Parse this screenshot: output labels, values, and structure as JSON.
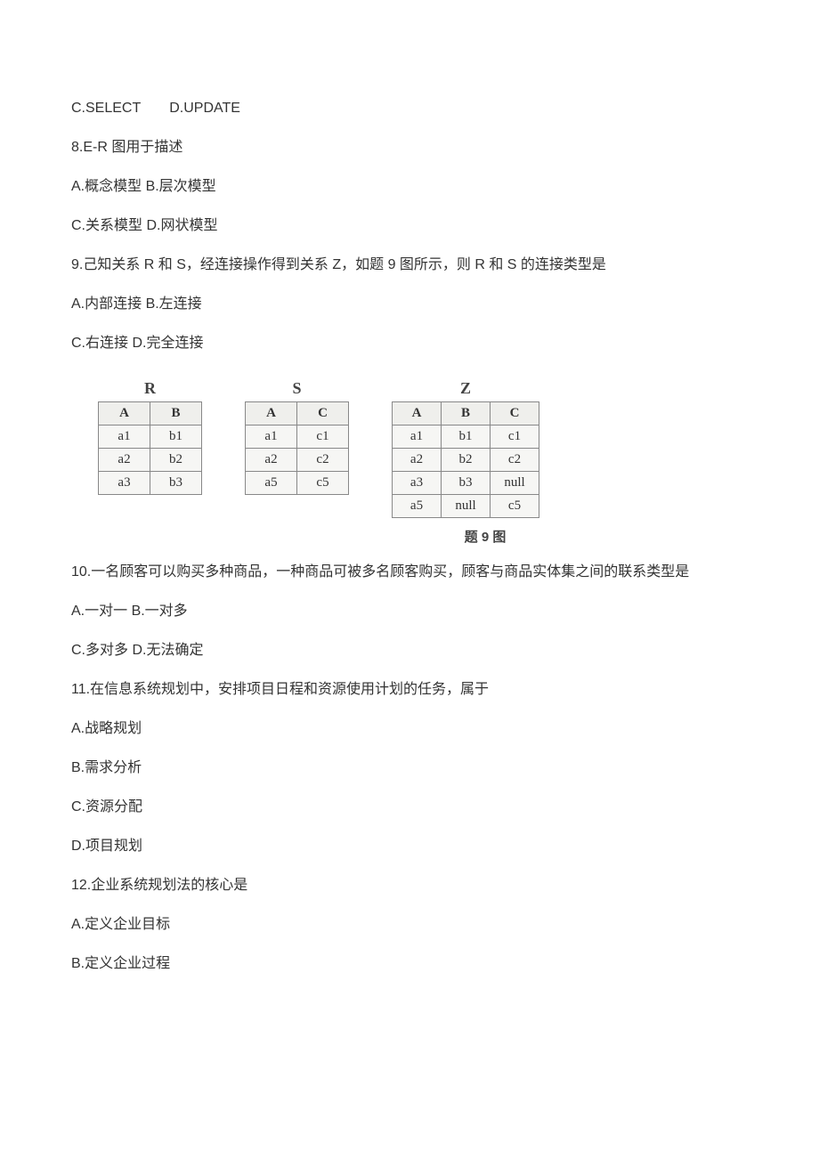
{
  "lines": {
    "l1": "C.SELECT  D.UPDATE",
    "l2": "8.E-R 图用于描述",
    "l3": "A.概念模型 B.层次模型",
    "l4": "C.关系模型 D.网状模型",
    "l5": "9.己知关系 R 和 S，经连接操作得到关系 Z，如题 9 图所示，则 R 和 S 的连接类型是",
    "l6": "A.内部连接 B.左连接",
    "l7": "C.右连接 D.完全连接",
    "l8": "10.一名顾客可以购买多种商品，一种商品可被多名顾客购买，顾客与商品实体集之间的联系类型是",
    "l9": "A.一对一 B.一对多",
    "l10": "C.多对多 D.无法确定",
    "l11": "11.在信息系统规划中，安排项目日程和资源使用计划的任务，属于",
    "l12": "A.战略规划",
    "l13": "B.需求分析",
    "l14": "C.资源分配",
    "l15": "D.项目规划",
    "l16": "12.企业系统规划法的核心是",
    "l17": "A.定义企业目标",
    "l18": "B.定义企业过程"
  },
  "figure": {
    "caption": "题 9 图",
    "R": {
      "title": "R",
      "head": [
        "A",
        "B"
      ],
      "rows": [
        [
          "a1",
          "b1"
        ],
        [
          "a2",
          "b2"
        ],
        [
          "a3",
          "b3"
        ]
      ]
    },
    "S": {
      "title": "S",
      "head": [
        "A",
        "C"
      ],
      "rows": [
        [
          "a1",
          "c1"
        ],
        [
          "a2",
          "c2"
        ],
        [
          "a5",
          "c5"
        ]
      ]
    },
    "Z": {
      "title": "Z",
      "head": [
        "A",
        "B",
        "C"
      ],
      "rows": [
        [
          "a1",
          "b1",
          "c1"
        ],
        [
          "a2",
          "b2",
          "c2"
        ],
        [
          "a3",
          "b3",
          "null"
        ],
        [
          "a5",
          "null",
          "c5"
        ]
      ]
    }
  }
}
